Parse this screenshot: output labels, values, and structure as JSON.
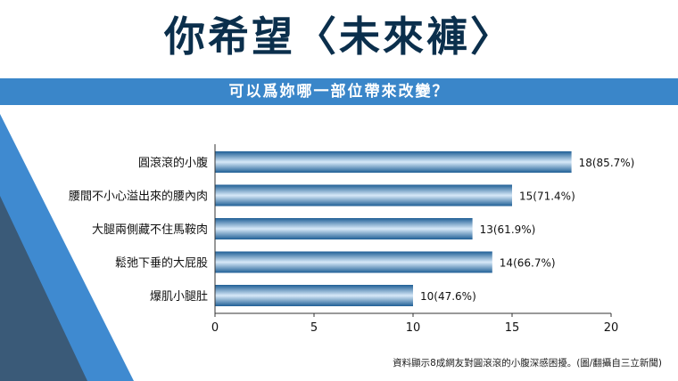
{
  "header": {
    "title": "你希望〈未來褲〉",
    "subtitle": "可以爲妳哪一部位帶來改變？"
  },
  "caption": "資料顯示8成網友對圓滾滾的小腹深感困擾。(圖/翻攝自三立新聞)",
  "colors": {
    "title": "#0b2f4c",
    "band": "#3a86c9",
    "bar_dark": "#1f5f96",
    "bar_light": "#d7e9f8"
  },
  "chart_data": {
    "type": "bar",
    "orientation": "horizontal",
    "categories": [
      "圓滾滾的小腹",
      "腰間不小心溢出來的腰內肉",
      "大腿兩側藏不住馬鞍肉",
      "鬆弛下垂的大屁股",
      "爆肌小腿肚"
    ],
    "values": [
      18,
      15,
      13,
      14,
      10
    ],
    "data_labels": [
      "18(85.7%)",
      "15(71.4%)",
      "13(61.9%)",
      "14(66.7%)",
      "10(47.6%)"
    ],
    "x_ticks": [
      "0",
      "5",
      "10",
      "15",
      "20"
    ],
    "xlim": [
      0,
      20
    ],
    "grid": false
  }
}
